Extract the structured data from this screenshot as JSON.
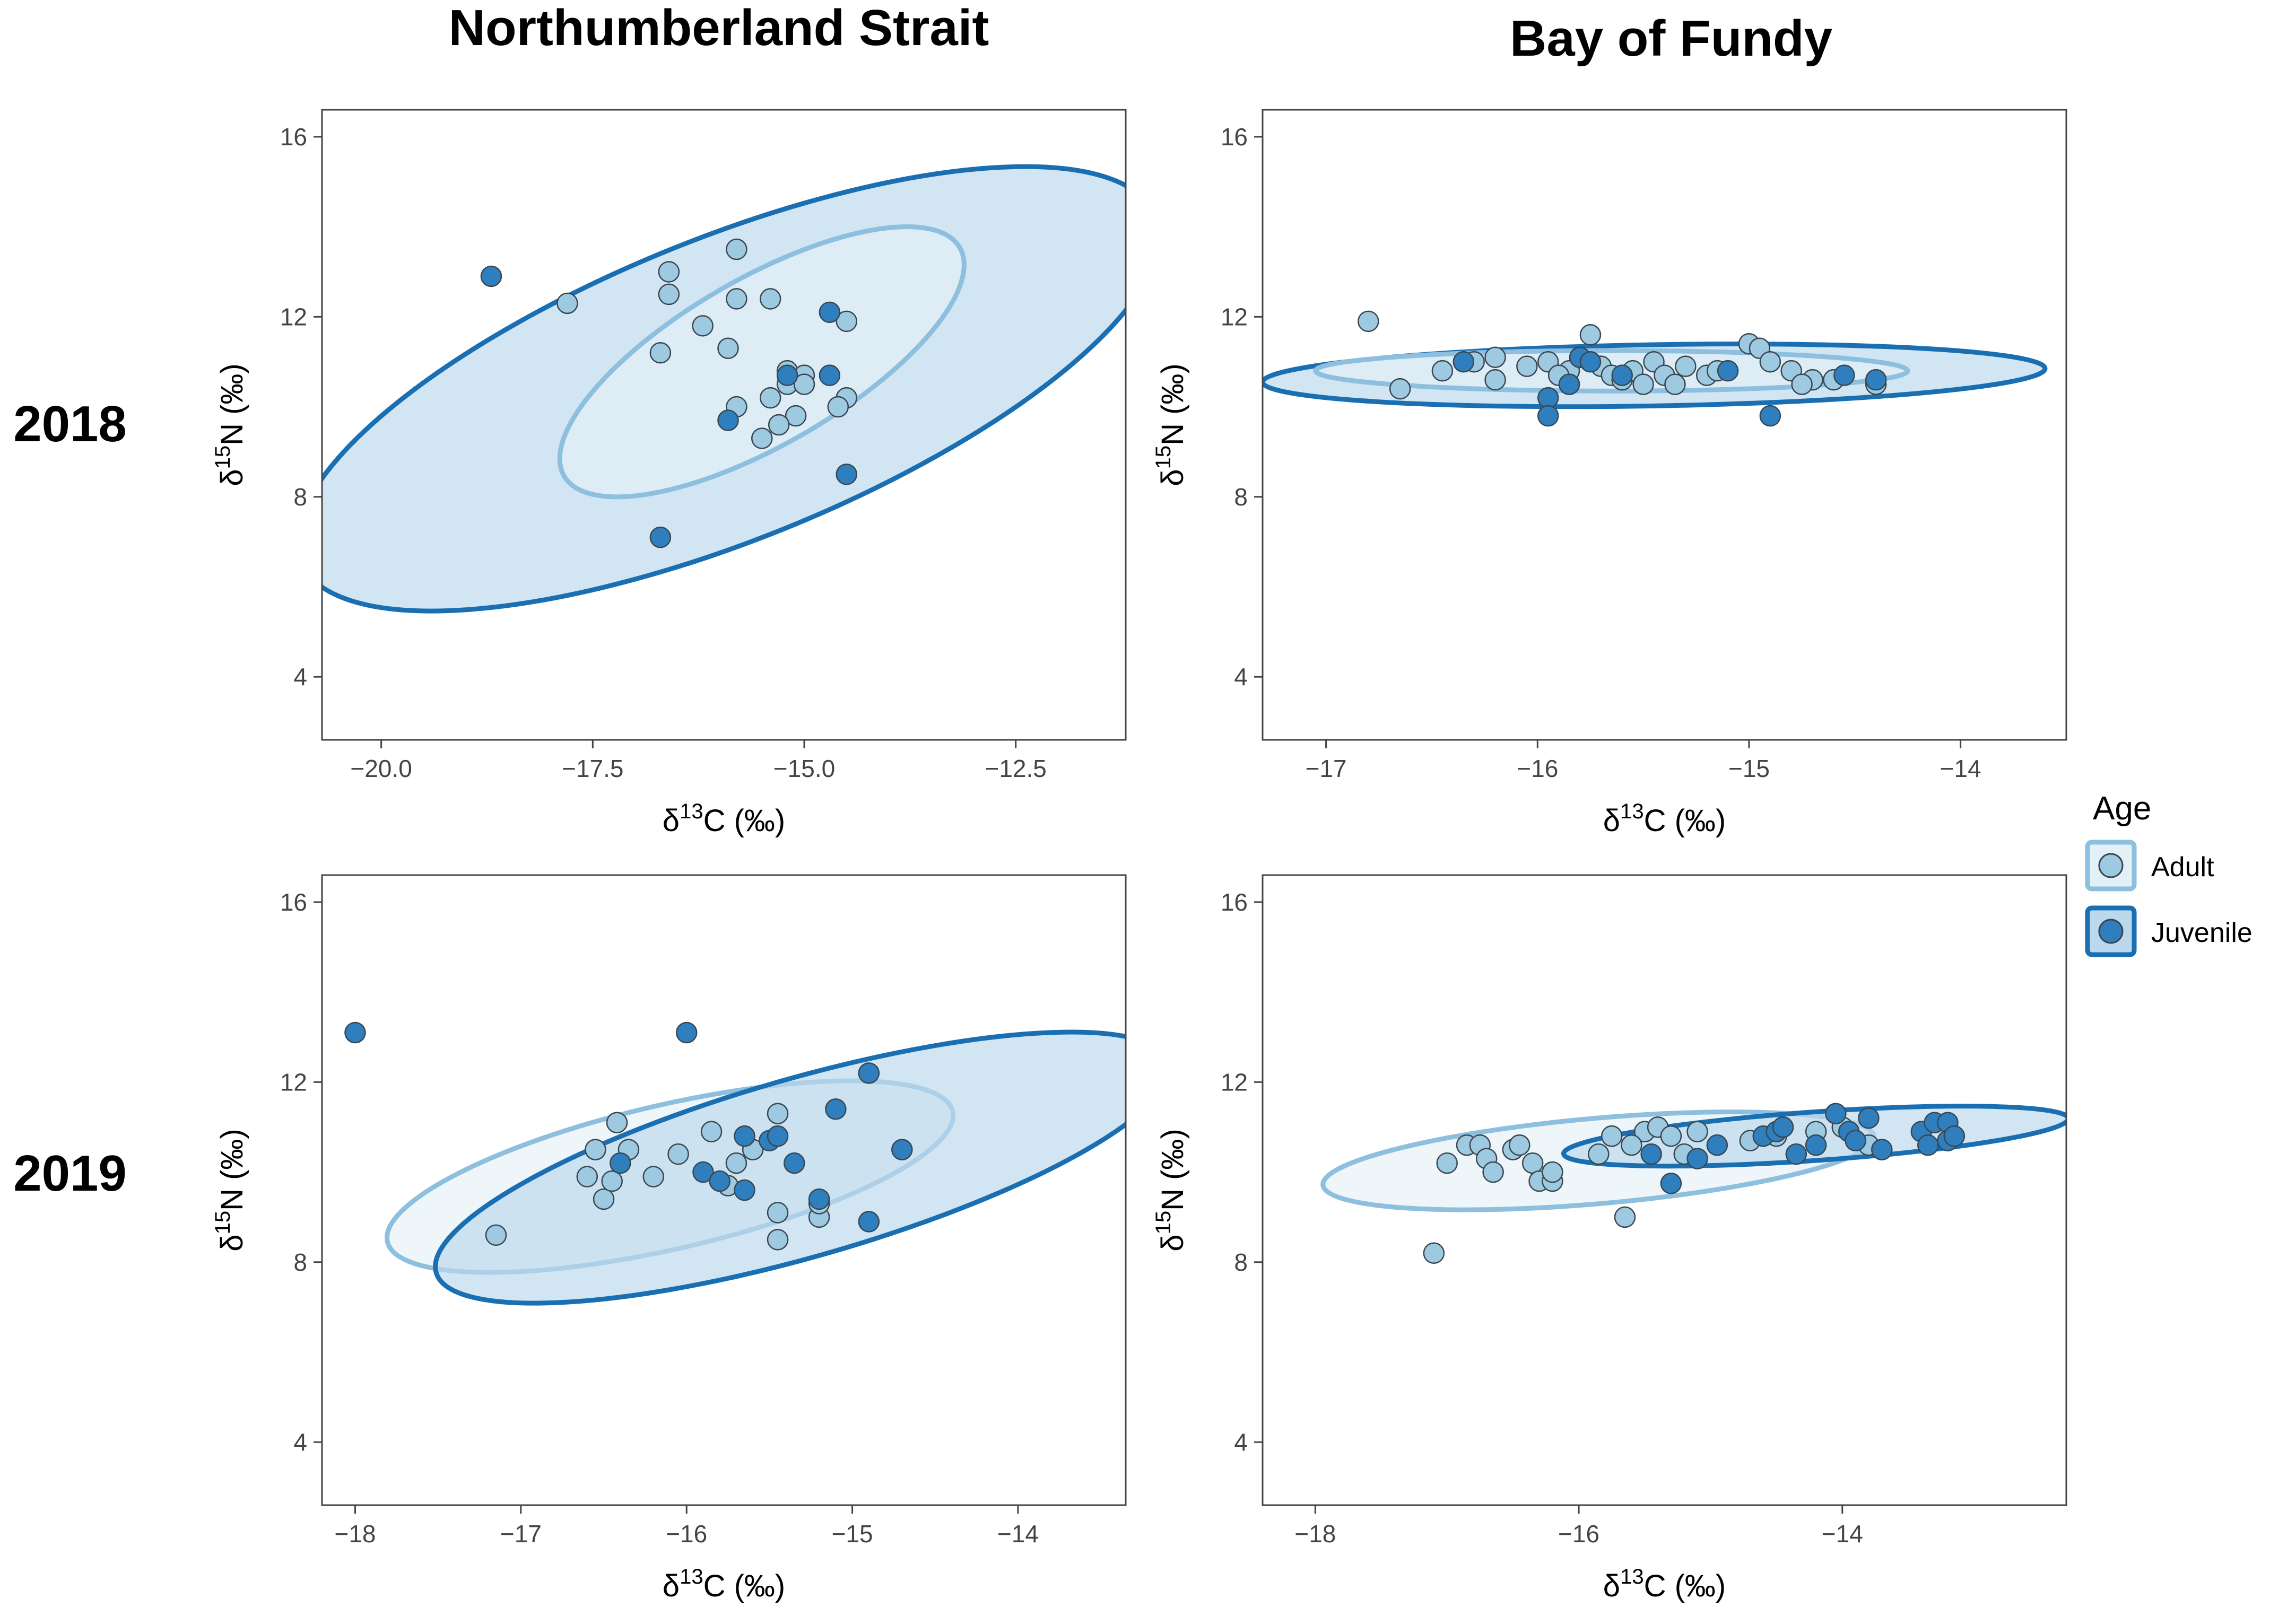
{
  "column_titles": [
    "Northumberland Strait",
    "Bay of Fundy"
  ],
  "row_titles": [
    "2018",
    "2019"
  ],
  "legend": {
    "title": "Age",
    "items": [
      {
        "label": "Adult",
        "color": "#9ecae1",
        "stroke": "#7fb3d5"
      },
      {
        "label": "Juvenile",
        "color": "#2b7bba",
        "stroke": "#1a6fb3"
      }
    ]
  },
  "colors": {
    "adult_fill": "#9ecae1",
    "adult_ellipse_fill": "#e3f0f7",
    "adult_ellipse_stroke": "#8dbfdf",
    "juvenile_fill": "#2f7fbe",
    "juvenile_ellipse_fill": "#bcd8ec",
    "juvenile_ellipse_stroke": "#1a6fb3",
    "point_stroke": "#3a4650"
  },
  "chart_data": [
    {
      "type": "scatter",
      "panel": "Northumberland Strait 2018",
      "xlabel": "δ13C (‰)",
      "ylabel": "δ15N (‰)",
      "xlim": [
        -20.7,
        -11.2
      ],
      "ylim": [
        2.6,
        16.6
      ],
      "xticks": [
        -20.0,
        -17.5,
        -15.0,
        -12.5
      ],
      "xtick_labels": [
        "−20.0",
        "−17.5",
        "−15.0",
        "−12.5"
      ],
      "yticks": [
        4,
        8,
        12,
        16
      ],
      "ytick_labels": [
        "4",
        "8",
        "12",
        "16"
      ],
      "ellipses": [
        {
          "group": "Juvenile",
          "cx": -15.9,
          "cy": 10.4,
          "rx": 5.45,
          "ry": 3.35,
          "angle": -22
        },
        {
          "group": "Adult",
          "cx": -15.5,
          "cy": 11.0,
          "rx": 2.7,
          "ry": 1.85,
          "angle": -30
        }
      ],
      "series": [
        {
          "name": "Adult",
          "points": [
            [
              -17.8,
              12.3
            ],
            [
              -16.6,
              13.0
            ],
            [
              -16.6,
              12.5
            ],
            [
              -16.7,
              11.2
            ],
            [
              -16.2,
              11.8
            ],
            [
              -15.8,
              13.5
            ],
            [
              -15.8,
              12.4
            ],
            [
              -15.4,
              12.4
            ],
            [
              -15.9,
              11.3
            ],
            [
              -15.8,
              10.0
            ],
            [
              -15.2,
              10.8
            ],
            [
              -15.2,
              10.5
            ],
            [
              -15.0,
              10.7
            ],
            [
              -15.0,
              10.5
            ],
            [
              -15.4,
              10.2
            ],
            [
              -15.1,
              9.8
            ],
            [
              -15.5,
              9.3
            ],
            [
              -15.3,
              9.6
            ],
            [
              -14.5,
              10.2
            ],
            [
              -14.6,
              10.0
            ],
            [
              -14.5,
              11.9
            ]
          ]
        },
        {
          "name": "Juvenile",
          "points": [
            [
              -18.7,
              12.9
            ],
            [
              -16.7,
              7.1
            ],
            [
              -14.7,
              12.1
            ],
            [
              -15.9,
              9.7
            ],
            [
              -15.2,
              10.7
            ],
            [
              -14.7,
              10.7
            ],
            [
              -14.5,
              8.5
            ]
          ]
        }
      ]
    },
    {
      "type": "scatter",
      "panel": "Bay of Fundy 2018",
      "xlabel": "δ13C (‰)",
      "ylabel": "δ15N (‰)",
      "xlim": [
        -17.3,
        -13.5
      ],
      "ylim": [
        2.6,
        16.6
      ],
      "xticks": [
        -17,
        -16,
        -15,
        -14
      ],
      "xtick_labels": [
        "−17",
        "−16",
        "−15",
        "−14"
      ],
      "yticks": [
        4,
        8,
        12,
        16
      ],
      "ytick_labels": [
        "4",
        "8",
        "12",
        "16"
      ],
      "ellipses": [
        {
          "group": "Juvenile",
          "cx": -15.45,
          "cy": 10.7,
          "rx": 1.85,
          "ry": 0.68,
          "angle": -1
        },
        {
          "group": "Adult",
          "cx": -15.65,
          "cy": 10.8,
          "rx": 1.4,
          "ry": 0.45,
          "angle": 0
        }
      ],
      "series": [
        {
          "name": "Adult",
          "points": [
            [
              -16.8,
              11.9
            ],
            [
              -16.65,
              10.4
            ],
            [
              -16.45,
              10.8
            ],
            [
              -16.3,
              11.0
            ],
            [
              -16.2,
              11.1
            ],
            [
              -16.2,
              10.6
            ],
            [
              -16.05,
              10.9
            ],
            [
              -15.95,
              11.0
            ],
            [
              -15.85,
              10.8
            ],
            [
              -15.85,
              10.5
            ],
            [
              -15.8,
              11.1
            ],
            [
              -15.75,
              11.6
            ],
            [
              -15.7,
              10.9
            ],
            [
              -15.65,
              10.7
            ],
            [
              -15.6,
              10.6
            ],
            [
              -15.55,
              10.8
            ],
            [
              -15.45,
              11.0
            ],
            [
              -15.4,
              10.7
            ],
            [
              -15.35,
              10.5
            ],
            [
              -15.3,
              10.9
            ],
            [
              -15.2,
              10.7
            ],
            [
              -15.15,
              10.8
            ],
            [
              -15.0,
              11.4
            ],
            [
              -14.95,
              11.3
            ],
            [
              -14.9,
              11.0
            ],
            [
              -14.8,
              10.8
            ],
            [
              -14.7,
              10.6
            ],
            [
              -14.6,
              10.6
            ],
            [
              -14.4,
              10.5
            ],
            [
              -15.5,
              10.5
            ],
            [
              -15.9,
              10.7
            ],
            [
              -14.75,
              10.5
            ]
          ]
        },
        {
          "name": "Juvenile",
          "points": [
            [
              -16.35,
              11.0
            ],
            [
              -15.95,
              10.2
            ],
            [
              -15.95,
              9.8
            ],
            [
              -15.85,
              10.5
            ],
            [
              -15.8,
              11.1
            ],
            [
              -15.75,
              11.0
            ],
            [
              -15.6,
              10.7
            ],
            [
              -15.1,
              10.8
            ],
            [
              -14.9,
              9.8
            ],
            [
              -14.55,
              10.7
            ],
            [
              -14.4,
              10.6
            ]
          ]
        }
      ]
    },
    {
      "type": "scatter",
      "panel": "Northumberland Strait 2019",
      "xlabel": "δ13C (‰)",
      "ylabel": "δ15N (‰)",
      "xlim": [
        -18.2,
        -13.35
      ],
      "ylim": [
        2.6,
        16.6
      ],
      "xticks": [
        -18,
        -17,
        -16,
        -15,
        -14
      ],
      "xtick_labels": [
        "−18",
        "−17",
        "−16",
        "−15",
        "−14"
      ],
      "yticks": [
        4,
        8,
        12,
        16
      ],
      "ytick_labels": [
        "4",
        "8",
        "12",
        "16"
      ],
      "ellipses": [
        {
          "group": "Adult",
          "cx": -16.1,
          "cy": 9.9,
          "rx": 1.75,
          "ry": 1.6,
          "angle": -13
        },
        {
          "group": "Juvenile",
          "cx": -15.3,
          "cy": 10.1,
          "rx": 2.3,
          "ry": 1.98,
          "angle": -16
        }
      ],
      "series": [
        {
          "name": "Adult",
          "points": [
            [
              -17.15,
              8.6
            ],
            [
              -16.6,
              9.9
            ],
            [
              -16.55,
              10.5
            ],
            [
              -16.5,
              9.4
            ],
            [
              -16.45,
              9.8
            ],
            [
              -16.42,
              11.1
            ],
            [
              -16.35,
              10.5
            ],
            [
              -16.2,
              9.9
            ],
            [
              -16.05,
              10.4
            ],
            [
              -15.85,
              10.9
            ],
            [
              -15.75,
              9.7
            ],
            [
              -15.7,
              10.2
            ],
            [
              -15.45,
              8.5
            ],
            [
              -15.45,
              9.1
            ],
            [
              -15.45,
              11.3
            ],
            [
              -15.2,
              9.0
            ],
            [
              -15.2,
              9.3
            ],
            [
              -15.6,
              10.5
            ]
          ]
        },
        {
          "name": "Juvenile",
          "points": [
            [
              -18.0,
              13.1
            ],
            [
              -16.4,
              10.2
            ],
            [
              -16.0,
              13.1
            ],
            [
              -15.9,
              10.0
            ],
            [
              -15.8,
              9.8
            ],
            [
              -15.65,
              9.6
            ],
            [
              -15.65,
              10.8
            ],
            [
              -15.5,
              10.7
            ],
            [
              -15.45,
              10.8
            ],
            [
              -15.35,
              10.2
            ],
            [
              -15.2,
              9.4
            ],
            [
              -15.1,
              11.4
            ],
            [
              -14.9,
              12.2
            ],
            [
              -14.9,
              8.9
            ],
            [
              -14.7,
              10.5
            ]
          ]
        }
      ]
    },
    {
      "type": "scatter",
      "panel": "Bay of Fundy 2019",
      "xlabel": "δ13C (‰)",
      "ylabel": "δ15N (‰)",
      "xlim": [
        -18.4,
        -12.3
      ],
      "ylim": [
        2.6,
        16.6
      ],
      "xticks": [
        -18,
        -16,
        -14
      ],
      "xtick_labels": [
        "−18",
        "−16",
        "−14"
      ],
      "yticks": [
        4,
        8,
        12,
        16
      ],
      "ytick_labels": [
        "4",
        "8",
        "12",
        "16"
      ],
      "ellipses": [
        {
          "group": "Adult",
          "cx": -15.85,
          "cy": 10.25,
          "rx": 2.1,
          "ry": 0.95,
          "angle": -5
        },
        {
          "group": "Juvenile",
          "cx": -14.2,
          "cy": 10.8,
          "rx": 1.92,
          "ry": 0.54,
          "angle": -4
        }
      ],
      "series": [
        {
          "name": "Adult",
          "points": [
            [
              -17.1,
              8.2
            ],
            [
              -17.0,
              10.2
            ],
            [
              -16.85,
              10.6
            ],
            [
              -16.75,
              10.6
            ],
            [
              -16.7,
              10.3
            ],
            [
              -16.65,
              10.0
            ],
            [
              -16.5,
              10.5
            ],
            [
              -16.45,
              10.6
            ],
            [
              -16.35,
              10.2
            ],
            [
              -16.3,
              9.8
            ],
            [
              -16.2,
              9.8
            ],
            [
              -16.2,
              10.0
            ],
            [
              -15.85,
              10.4
            ],
            [
              -15.75,
              10.8
            ],
            [
              -15.65,
              9.0
            ],
            [
              -15.5,
              10.9
            ],
            [
              -15.4,
              11.0
            ],
            [
              -15.3,
              10.8
            ],
            [
              -15.2,
              10.4
            ],
            [
              -15.1,
              10.9
            ],
            [
              -14.7,
              10.7
            ],
            [
              -14.5,
              10.8
            ],
            [
              -14.2,
              10.9
            ],
            [
              -14.0,
              11.0
            ],
            [
              -13.8,
              10.6
            ],
            [
              -15.6,
              10.6
            ]
          ]
        },
        {
          "name": "Juvenile",
          "points": [
            [
              -15.45,
              10.4
            ],
            [
              -15.3,
              9.75
            ],
            [
              -15.1,
              10.3
            ],
            [
              -14.95,
              10.6
            ],
            [
              -14.6,
              10.8
            ],
            [
              -14.5,
              10.9
            ],
            [
              -14.45,
              11.0
            ],
            [
              -14.35,
              10.4
            ],
            [
              -14.2,
              10.6
            ],
            [
              -14.05,
              11.3
            ],
            [
              -13.95,
              10.9
            ],
            [
              -13.9,
              10.7
            ],
            [
              -13.8,
              11.2
            ],
            [
              -13.7,
              10.5
            ],
            [
              -13.4,
              10.9
            ],
            [
              -13.35,
              10.6
            ],
            [
              -13.3,
              11.1
            ],
            [
              -13.2,
              11.1
            ],
            [
              -13.2,
              10.7
            ],
            [
              -13.15,
              10.8
            ]
          ]
        }
      ]
    }
  ]
}
